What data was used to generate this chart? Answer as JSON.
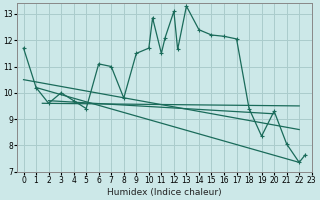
{
  "xlabel": "Humidex (Indice chaleur)",
  "background_color": "#cce8e8",
  "grid_color": "#aacccc",
  "line_color": "#1a6b5a",
  "linewidth": 0.9,
  "markersize": 3.5,
  "xlim": [
    -0.5,
    23
  ],
  "ylim": [
    7,
    13.4
  ],
  "xticks": [
    0,
    1,
    2,
    3,
    4,
    5,
    6,
    7,
    8,
    9,
    10,
    11,
    12,
    13,
    14,
    15,
    16,
    17,
    18,
    19,
    20,
    21,
    22,
    23
  ],
  "yticks": [
    7,
    8,
    9,
    10,
    11,
    12,
    13
  ],
  "curve1": [
    [
      0,
      11.7
    ],
    [
      1,
      10.2
    ],
    [
      2,
      9.6
    ],
    [
      3,
      10.0
    ],
    [
      4,
      9.7
    ],
    [
      5,
      9.4
    ],
    [
      6,
      11.1
    ],
    [
      7,
      11.0
    ],
    [
      8,
      9.8
    ],
    [
      9,
      11.5
    ],
    [
      10,
      11.7
    ],
    [
      10.3,
      12.85
    ],
    [
      11,
      11.5
    ],
    [
      11.3,
      12.1
    ],
    [
      12,
      13.1
    ],
    [
      12.3,
      11.65
    ],
    [
      13,
      13.3
    ],
    [
      14,
      12.4
    ],
    [
      15,
      12.2
    ],
    [
      16,
      12.15
    ],
    [
      17,
      12.05
    ],
    [
      18,
      9.4
    ],
    [
      19,
      8.35
    ],
    [
      20,
      9.3
    ],
    [
      21,
      8.05
    ],
    [
      22,
      7.35
    ],
    [
      22.5,
      7.65
    ]
  ],
  "line_flat1": {
    "x": [
      1.5,
      22
    ],
    "y": [
      9.6,
      9.5
    ]
  },
  "line_diag1": {
    "x": [
      1,
      22
    ],
    "y": [
      10.2,
      7.35
    ]
  },
  "line_diag2": {
    "x": [
      0,
      22
    ],
    "y": [
      10.5,
      8.6
    ]
  },
  "line_diag3": {
    "x": [
      2,
      20
    ],
    "y": [
      9.7,
      9.2
    ]
  }
}
